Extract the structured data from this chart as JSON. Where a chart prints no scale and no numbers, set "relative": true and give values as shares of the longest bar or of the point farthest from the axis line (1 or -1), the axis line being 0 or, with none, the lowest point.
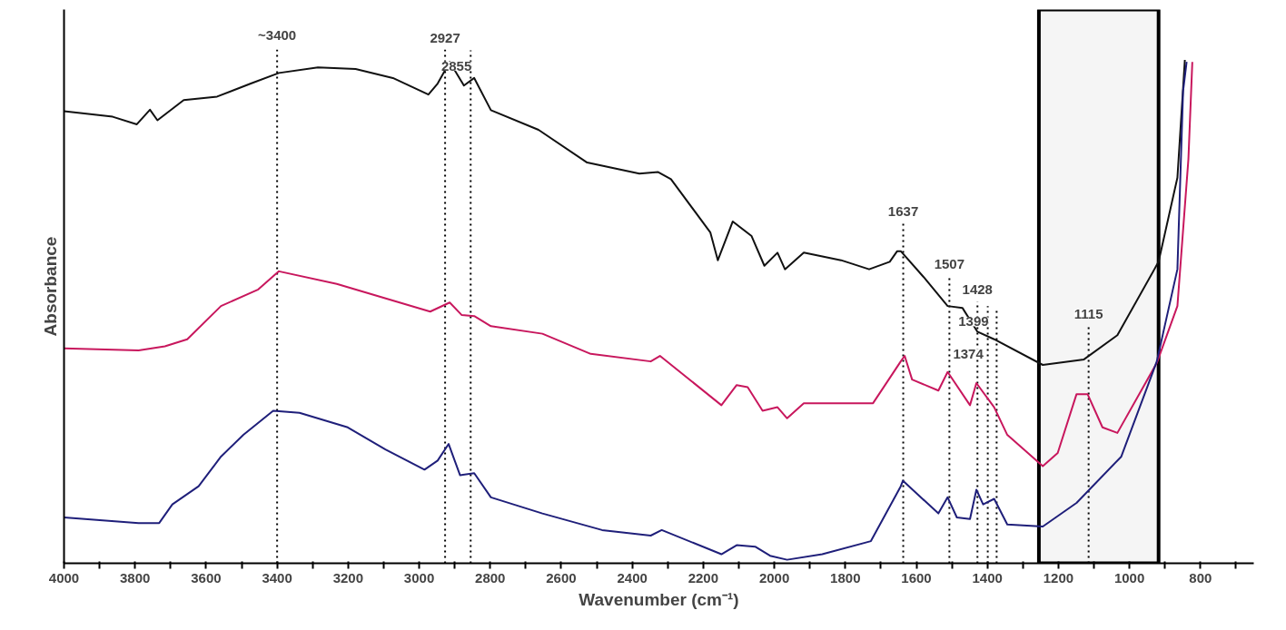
{
  "chart_data": {
    "type": "line",
    "relative": true,
    "xlabel": "Wavenumber (cm⁻¹)",
    "ylabel": "Absorbance",
    "tick_labels": "x",
    "grid": false,
    "marker": "none",
    "line_style": "solid",
    "xlim": [
      4000,
      650
    ],
    "xticks": [
      4000,
      {
        "value": 3900,
        "label": null
      },
      3800,
      {
        "value": 3700,
        "label": null
      },
      3600,
      {
        "value": 3500,
        "label": null
      },
      3400,
      {
        "value": 3300,
        "label": null
      },
      3200,
      {
        "value": 3100,
        "label": null
      },
      3000,
      {
        "value": 2900,
        "label": null
      },
      2800,
      {
        "value": 2700,
        "label": null
      },
      2600,
      {
        "value": 2500,
        "label": null
      },
      2400,
      {
        "value": 2300,
        "label": null
      },
      2200,
      {
        "value": 2100,
        "label": null
      },
      2000,
      {
        "value": 1900,
        "label": null
      },
      1800,
      {
        "value": 1700,
        "label": null
      },
      1600,
      {
        "value": 1500,
        "label": null
      },
      1400,
      {
        "value": 1300,
        "label": null
      },
      1200,
      {
        "value": 1100,
        "label": null
      },
      1000,
      {
        "value": 900,
        "label": null
      },
      800,
      {
        "value": 700,
        "label": null
      }
    ],
    "series": [
      {
        "color": "#111111",
        "x": [
          4000,
          3863,
          3795,
          3758,
          3737,
          3663,
          3569,
          3474,
          3395,
          3285,
          3179,
          3074,
          2974,
          2948,
          2914,
          2874,
          2845,
          2798,
          2664,
          2527,
          2380,
          2327,
          2291,
          2180,
          2159,
          2117,
          2064,
          2028,
          1991,
          1970,
          1917,
          1812,
          1733,
          1675,
          1654,
          1644,
          1580,
          1512,
          1470,
          1428,
          1381,
          1244,
          1128,
          1034,
          918,
          865,
          844
        ],
        "values": [
          0.898,
          0.887,
          0.872,
          0.901,
          0.88,
          0.92,
          0.927,
          0.953,
          0.974,
          0.985,
          0.982,
          0.964,
          0.931,
          0.953,
          0.996,
          0.949,
          0.964,
          0.9,
          0.861,
          0.796,
          0.774,
          0.777,
          0.763,
          0.657,
          0.602,
          0.679,
          0.65,
          0.591,
          0.617,
          0.584,
          0.617,
          0.602,
          0.584,
          0.599,
          0.62,
          0.62,
          0.569,
          0.511,
          0.507,
          0.46,
          0.445,
          0.394,
          0.405,
          0.453,
          0.599,
          0.766,
          1.0
        ]
      },
      {
        "color": "#c8175d",
        "x": [
          4000,
          3790,
          3716,
          3653,
          3558,
          3453,
          3395,
          3232,
          2969,
          2914,
          2880,
          2845,
          2798,
          2653,
          2517,
          2348,
          2322,
          2149,
          2106,
          2075,
          2033,
          1991,
          1964,
          1917,
          1722,
          1644,
          1633,
          1612,
          1538,
          1512,
          1449,
          1431,
          1381,
          1344,
          1244,
          1202,
          1149,
          1118,
          1076,
          1034,
          923,
          865,
          834,
          823
        ],
        "values": [
          0.427,
          0.423,
          0.431,
          0.445,
          0.511,
          0.544,
          0.58,
          0.555,
          0.5,
          0.518,
          0.493,
          0.491,
          0.471,
          0.456,
          0.416,
          0.401,
          0.412,
          0.314,
          0.354,
          0.35,
          0.303,
          0.31,
          0.288,
          0.318,
          0.318,
          0.401,
          0.412,
          0.365,
          0.343,
          0.38,
          0.314,
          0.358,
          0.31,
          0.255,
          0.193,
          0.219,
          0.336,
          0.336,
          0.27,
          0.259,
          0.398,
          0.511,
          0.803,
          0.996
        ]
      },
      {
        "color": "#1f1f7a",
        "x": [
          4000,
          3790,
          3732,
          3695,
          3621,
          3558,
          3495,
          3411,
          3337,
          3201,
          3095,
          2985,
          2948,
          2917,
          2885,
          2845,
          2798,
          2653,
          2485,
          2348,
          2317,
          2149,
          2106,
          2054,
          2012,
          1964,
          1865,
          1728,
          1644,
          1638,
          1538,
          1512,
          1486,
          1449,
          1431,
          1412,
          1381,
          1344,
          1244,
          1149,
          1023,
          923,
          865,
          849,
          839
        ],
        "values": [
          0.091,
          0.08,
          0.08,
          0.117,
          0.153,
          0.212,
          0.255,
          0.303,
          0.299,
          0.27,
          0.226,
          0.186,
          0.204,
          0.237,
          0.175,
          0.179,
          0.131,
          0.099,
          0.066,
          0.055,
          0.066,
          0.018,
          0.036,
          0.033,
          0.015,
          0.007,
          0.018,
          0.044,
          0.153,
          0.164,
          0.099,
          0.131,
          0.091,
          0.088,
          0.146,
          0.117,
          0.128,
          0.077,
          0.073,
          0.12,
          0.212,
          0.401,
          0.584,
          0.938,
          0.996
        ]
      }
    ],
    "ref_lines": [
      {
        "axis": "x",
        "value": 3400,
        "label": "~3400",
        "line_style": "dotted",
        "color": "#000000"
      },
      {
        "axis": "x",
        "value": 2927,
        "label": "2927",
        "line_style": "dotted",
        "color": "#000000"
      },
      {
        "axis": "x",
        "value": 2855,
        "label": "2855",
        "line_style": "dotted",
        "color": "#000000"
      },
      {
        "axis": "x",
        "value": 1637,
        "label": "1637",
        "line_style": "dotted",
        "color": "#000000"
      },
      {
        "axis": "x",
        "value": 1507,
        "label": "1507",
        "line_style": "dotted",
        "color": "#000000"
      },
      {
        "axis": "x",
        "value": 1428,
        "label": "1428",
        "line_style": "dotted",
        "color": "#000000"
      },
      {
        "axis": "x",
        "value": 1399,
        "label": "1399",
        "line_style": "dotted",
        "color": "#000000"
      },
      {
        "axis": "x",
        "value": 1374,
        "label": "1374",
        "line_style": "dotted",
        "color": "#000000"
      },
      {
        "axis": "x",
        "value": 1115,
        "label": "1115",
        "line_style": "dotted",
        "color": "#000000"
      }
    ],
    "bands": [
      {
        "axis": "x",
        "from": 1255,
        "to": 918,
        "color": "#000000"
      }
    ]
  }
}
